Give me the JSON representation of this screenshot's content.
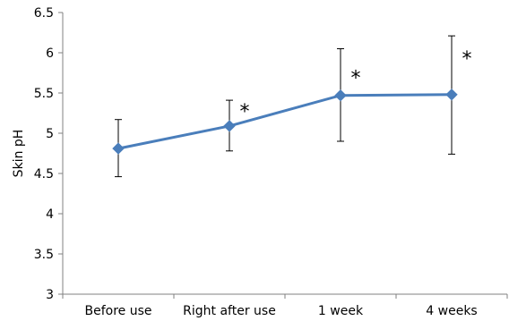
{
  "chart_data": {
    "type": "line",
    "title": "",
    "xlabel": "",
    "ylabel": "Skin pH",
    "categories": [
      "Before use",
      "Right after use",
      "1 week",
      "4 weeks"
    ],
    "ylim": [
      3,
      6.5
    ],
    "yticks": [
      "3",
      "3.5",
      "4",
      "4.5",
      "5",
      "5.5",
      "6",
      "6.5"
    ],
    "grid": false,
    "legend": "none",
    "series": [
      {
        "values": [
          4.81,
          5.09,
          5.47,
          5.48
        ],
        "error_low": [
          4.46,
          4.78,
          4.9,
          4.74
        ],
        "error_high": [
          5.17,
          5.41,
          6.05,
          6.21
        ],
        "significance": [
          "",
          "*",
          "*",
          "*"
        ],
        "color": "#4a7ebb"
      }
    ]
  }
}
